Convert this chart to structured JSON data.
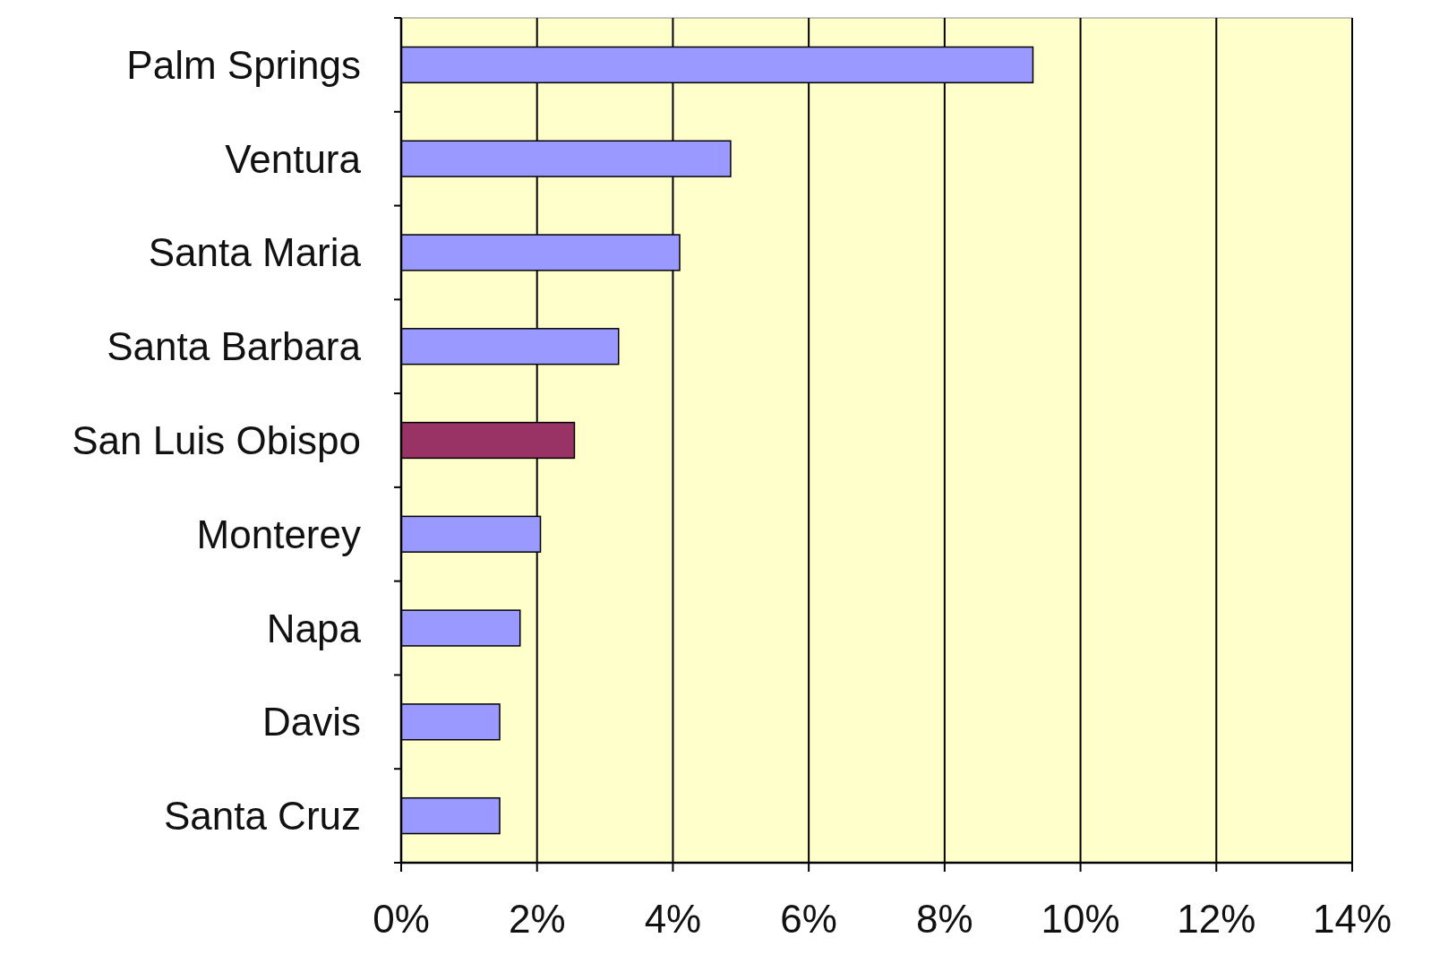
{
  "chart_data": {
    "type": "bar",
    "orientation": "horizontal",
    "categories": [
      "Palm Springs",
      "Ventura",
      "Santa Maria",
      "Santa Barbara",
      "San Luis Obispo",
      "Monterey",
      "Napa",
      "Davis",
      "Santa Cruz"
    ],
    "values": [
      9.3,
      4.85,
      4.1,
      3.2,
      2.55,
      2.05,
      1.75,
      1.45,
      1.45
    ],
    "colors": [
      "#9999ff",
      "#9999ff",
      "#9999ff",
      "#9999ff",
      "#993366",
      "#9999ff",
      "#9999ff",
      "#9999ff",
      "#9999ff"
    ],
    "xlim": [
      0,
      14
    ],
    "xticks": [
      {
        "value": 0,
        "label": "0%"
      },
      {
        "value": 2,
        "label": "2%"
      },
      {
        "value": 4,
        "label": "4%"
      },
      {
        "value": 6,
        "label": "6%"
      },
      {
        "value": 8,
        "label": "8%"
      },
      {
        "value": 10,
        "label": "10%"
      },
      {
        "value": 12,
        "label": "12%"
      },
      {
        "value": 14,
        "label": "14%"
      }
    ],
    "grid": "x"
  }
}
